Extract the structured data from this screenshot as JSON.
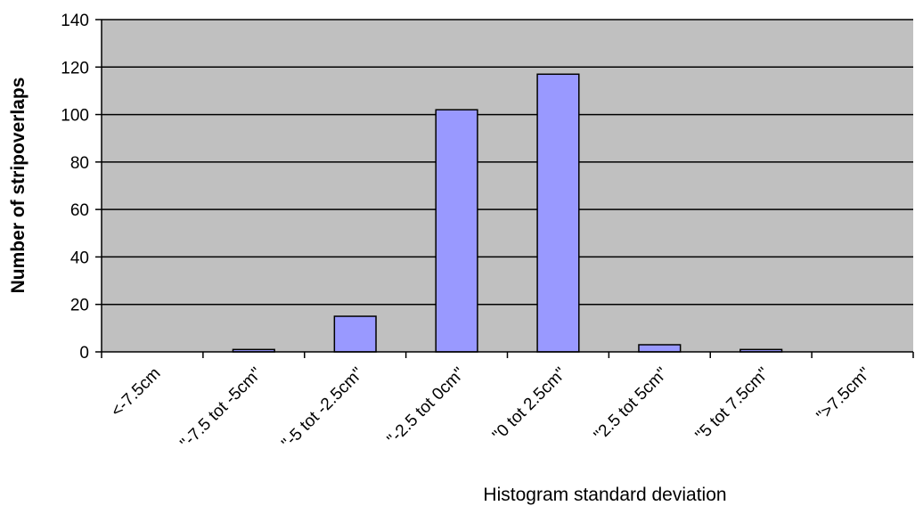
{
  "chart_data": {
    "type": "bar",
    "title": "",
    "xlabel": "Histogram standard deviation",
    "ylabel": "Number of stripoverlaps",
    "categories": [
      "<-7.5cm",
      "\"-7.5 tot -5cm\"",
      "\"-5 tot -2.5cm\"",
      "\"-2.5 tot 0cm\"",
      "\"0 tot 2.5cm\"",
      "\"2.5 tot 5cm\"",
      "\"5 tot 7.5cm\"",
      "\">7.5cm\""
    ],
    "values": [
      0,
      1,
      15,
      102,
      117,
      3,
      1,
      0
    ],
    "ylim": [
      0,
      140
    ],
    "yticks": [
      0,
      20,
      40,
      60,
      80,
      100,
      120,
      140
    ],
    "grid": true,
    "legend": "none",
    "colors": {
      "plot_background": "#c0c0c0",
      "bar_fill": "#9999ff",
      "bar_stroke": "#000000",
      "gridline": "#000000"
    }
  }
}
